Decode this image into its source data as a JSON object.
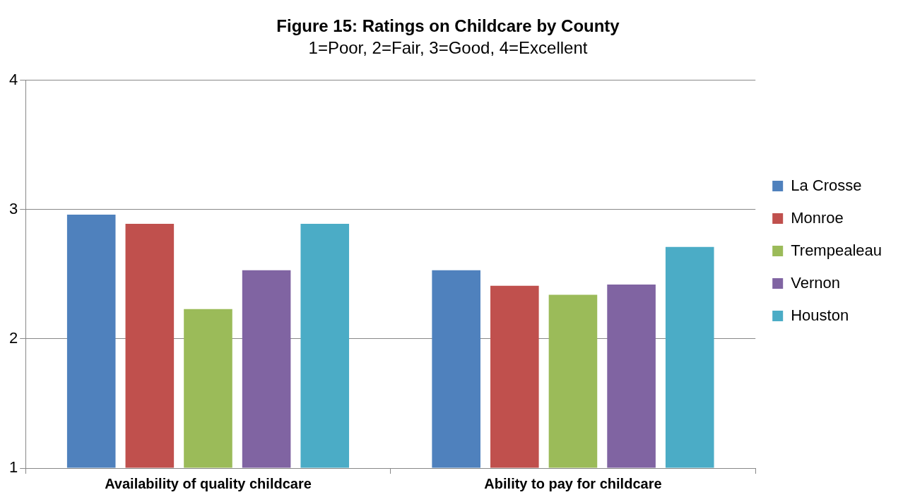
{
  "chart_data": {
    "type": "bar",
    "title": "Figure 15: Ratings on Childcare by County",
    "subtitle": "1=Poor, 2=Fair, 3=Good, 4=Excellent",
    "categories": [
      "Availability of quality childcare",
      "Ability to pay for childcare"
    ],
    "series": [
      {
        "name": "La Crosse",
        "color": "#4f81bd",
        "values": [
          2.96,
          2.53
        ]
      },
      {
        "name": "Monroe",
        "color": "#c0504d",
        "values": [
          2.89,
          2.41
        ]
      },
      {
        "name": "Trempealeau",
        "color": "#9bbb59",
        "values": [
          2.23,
          2.34
        ]
      },
      {
        "name": "Vernon",
        "color": "#8064a2",
        "values": [
          2.53,
          2.42
        ]
      },
      {
        "name": "Houston",
        "color": "#4bacc6",
        "values": [
          2.89,
          2.71
        ]
      }
    ],
    "ylim": [
      1,
      4
    ],
    "yticks": [
      1,
      2,
      3,
      4
    ],
    "grid": "y",
    "legend": "right"
  }
}
